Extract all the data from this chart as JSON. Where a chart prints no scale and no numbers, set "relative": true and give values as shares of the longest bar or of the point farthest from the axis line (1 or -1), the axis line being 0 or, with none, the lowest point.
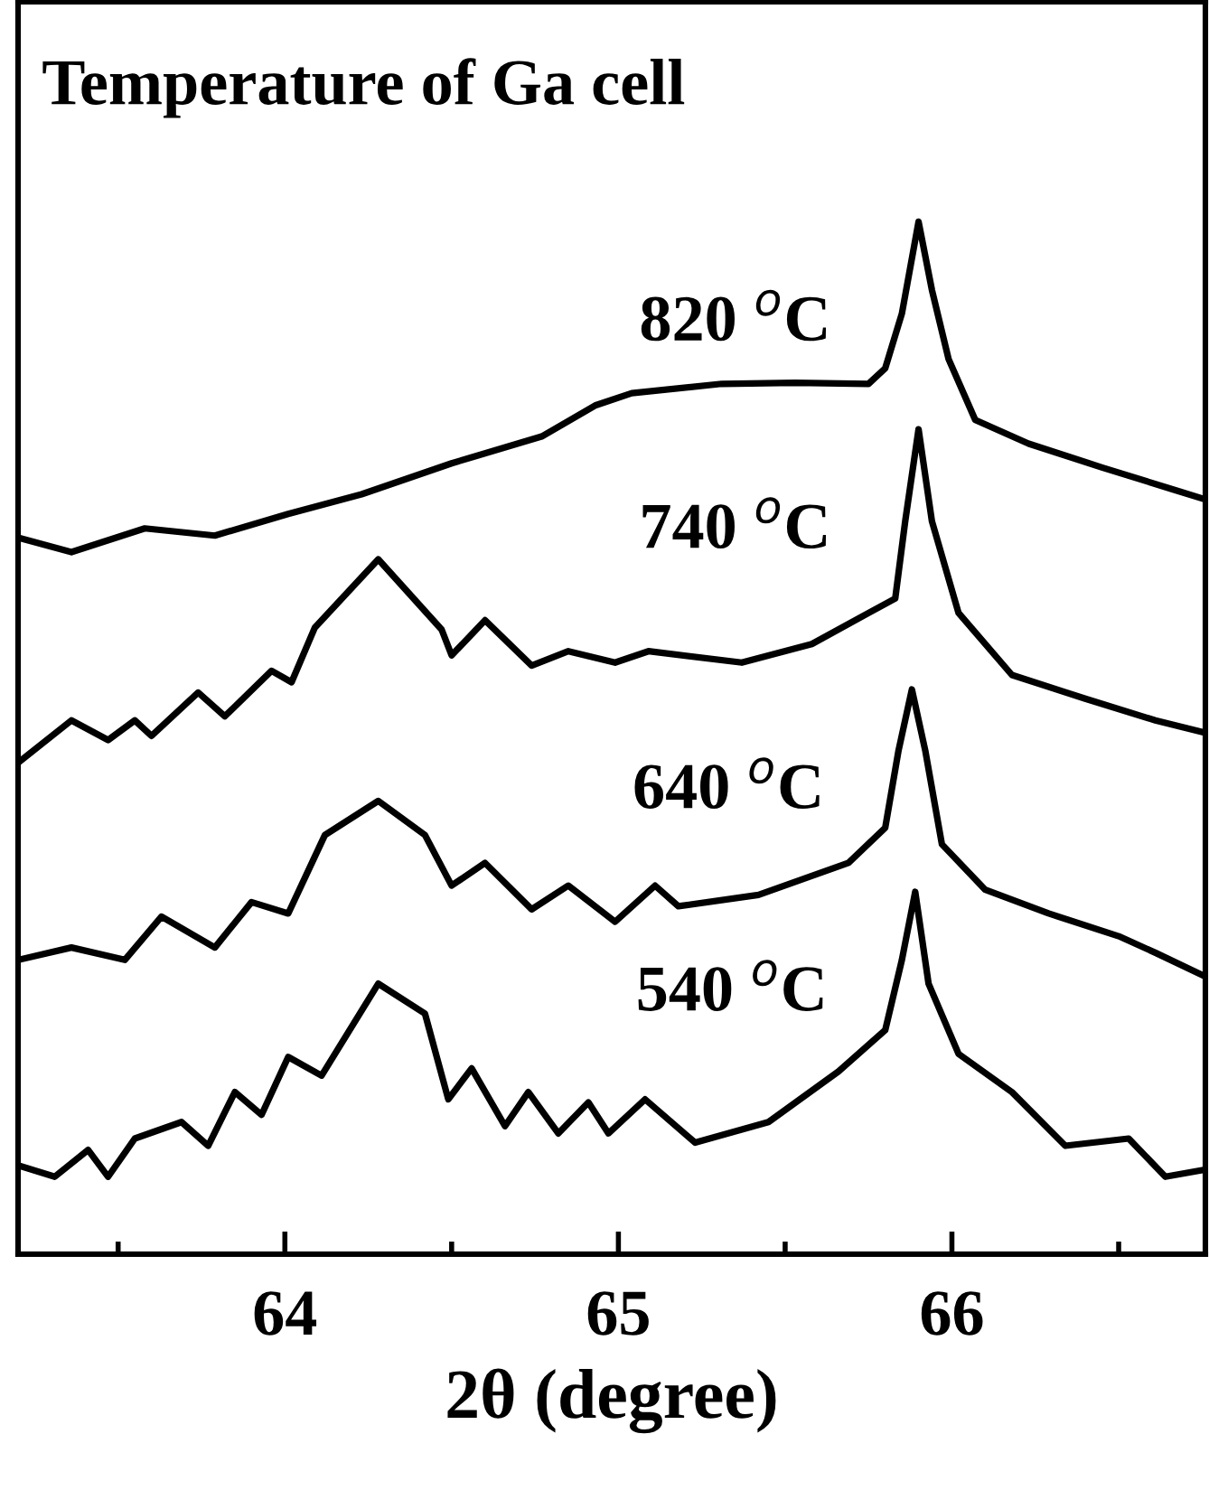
{
  "chart_data": {
    "type": "line",
    "relative": true,
    "xlabel": "2θ (degree)",
    "annotations": [
      "Temperature of Ga cell"
    ],
    "xlim": [
      63.2,
      66.76
    ],
    "xticks": [
      {
        "value": 63.5,
        "label": null
      },
      64,
      {
        "value": 64.5,
        "label": null
      },
      65,
      {
        "value": 65.5,
        "label": null
      },
      66,
      {
        "value": 66.5,
        "label": null
      }
    ],
    "grid": false,
    "legend": false,
    "marker": "none",
    "line_style": "solid",
    "series": [
      {
        "name": "820 $^{o}$C",
        "color": "#000000",
        "x": [
          63.2,
          63.36,
          63.58,
          63.79,
          64.01,
          64.23,
          64.5,
          64.77,
          64.93,
          65.04,
          65.31,
          65.53,
          65.75,
          65.8,
          65.85,
          65.9,
          65.94,
          65.99,
          66.07,
          66.23,
          66.45,
          66.67,
          66.76
        ],
        "values": [
          0.694,
          0.68,
          0.703,
          0.696,
          0.717,
          0.736,
          0.766,
          0.792,
          0.822,
          0.834,
          0.843,
          0.844,
          0.843,
          0.858,
          0.911,
          1.0,
          0.934,
          0.867,
          0.808,
          0.785,
          0.762,
          0.74,
          0.731
        ]
      },
      {
        "name": "740 $^{o}$C",
        "color": "#000000",
        "x": [
          63.2,
          63.36,
          63.47,
          63.55,
          63.6,
          63.74,
          63.82,
          63.96,
          64.02,
          64.09,
          64.28,
          64.47,
          64.5,
          64.6,
          64.74,
          64.85,
          64.99,
          65.09,
          65.37,
          65.58,
          65.75,
          65.83,
          65.86,
          65.9,
          65.94,
          66.02,
          66.18,
          66.4,
          66.61,
          66.76
        ],
        "values": [
          0.476,
          0.517,
          0.498,
          0.517,
          0.502,
          0.544,
          0.521,
          0.565,
          0.554,
          0.607,
          0.673,
          0.605,
          0.58,
          0.614,
          0.57,
          0.584,
          0.573,
          0.584,
          0.573,
          0.591,
          0.621,
          0.635,
          0.71,
          0.799,
          0.71,
          0.621,
          0.561,
          0.538,
          0.517,
          0.505
        ]
      },
      {
        "name": "640 $^{o}$C",
        "color": "#000000",
        "x": [
          63.2,
          63.36,
          63.52,
          63.63,
          63.79,
          63.9,
          64.01,
          64.12,
          64.28,
          64.42,
          64.5,
          64.6,
          64.74,
          64.85,
          64.99,
          65.11,
          65.18,
          65.42,
          65.69,
          65.8,
          65.84,
          65.88,
          65.92,
          65.97,
          66.1,
          66.29,
          66.5,
          66.61,
          66.76
        ],
        "values": [
          0.285,
          0.297,
          0.285,
          0.327,
          0.297,
          0.341,
          0.33,
          0.406,
          0.439,
          0.406,
          0.357,
          0.379,
          0.334,
          0.357,
          0.322,
          0.357,
          0.337,
          0.348,
          0.379,
          0.413,
          0.488,
          0.547,
          0.488,
          0.397,
          0.353,
          0.33,
          0.308,
          0.292,
          0.269
        ]
      },
      {
        "name": "540 $^{o}$C",
        "color": "#000000",
        "x": [
          63.2,
          63.31,
          63.41,
          63.47,
          63.55,
          63.69,
          63.77,
          63.85,
          63.93,
          64.01,
          64.11,
          64.28,
          64.42,
          64.49,
          64.56,
          64.66,
          64.73,
          64.82,
          64.91,
          64.97,
          65.08,
          65.23,
          65.45,
          65.66,
          65.8,
          65.85,
          65.89,
          65.93,
          66.02,
          66.18,
          66.34,
          66.53,
          66.64,
          66.76
        ],
        "values": [
          0.086,
          0.075,
          0.101,
          0.075,
          0.112,
          0.128,
          0.105,
          0.157,
          0.135,
          0.191,
          0.173,
          0.262,
          0.233,
          0.15,
          0.18,
          0.124,
          0.157,
          0.117,
          0.147,
          0.117,
          0.15,
          0.108,
          0.128,
          0.177,
          0.217,
          0.285,
          0.351,
          0.262,
          0.194,
          0.157,
          0.105,
          0.112,
          0.075,
          0.082
        ]
      }
    ]
  }
}
